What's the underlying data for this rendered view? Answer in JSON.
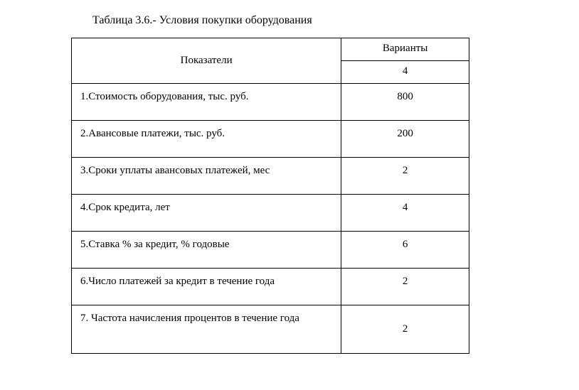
{
  "caption": "Таблица 3.6.- Условия покупки оборудования",
  "table": {
    "header_indicators": "Показатели",
    "header_variants": "Варианты",
    "variant_number": "4",
    "rows": [
      {
        "label": "1.Стоимость оборудования, тыс.  руб.",
        "value": "800"
      },
      {
        "label": "2.Авансовые платежи, тыс. руб.",
        "value": "200"
      },
      {
        "label": "3.Сроки уплаты авансовых платежей, мес",
        "value": "2"
      },
      {
        "label": "4.Срок кредита, лет",
        "value": "4"
      },
      {
        "label": "5.Ставка % за кредит, % годовые",
        "value": "6"
      },
      {
        "label": "6.Число платежей за кредит в течение года",
        "value": "2"
      },
      {
        "label": "7. Частота начисления процентов   в течение года",
        "value": "2"
      }
    ]
  }
}
